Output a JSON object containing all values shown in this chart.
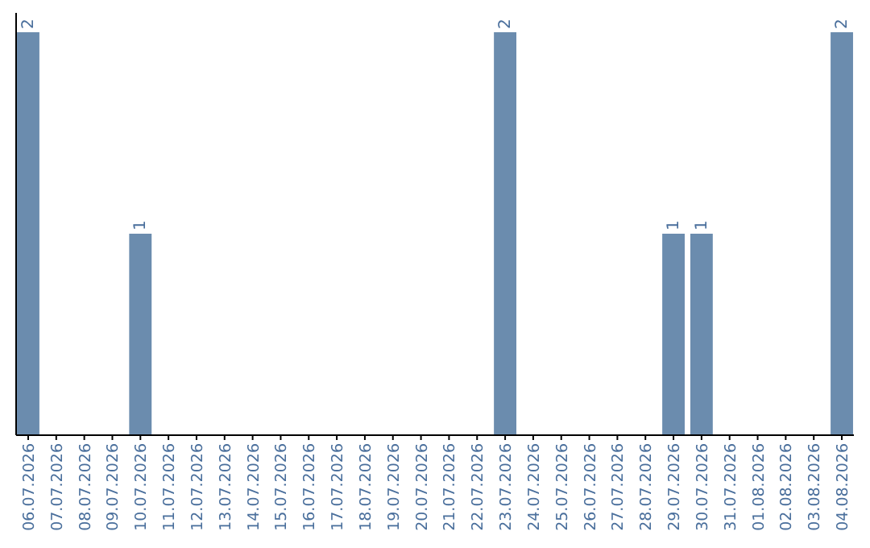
{
  "chart_data": {
    "type": "bar",
    "categories": [
      "06.07.2026",
      "07.07.2026",
      "08.07.2026",
      "09.07.2026",
      "10.07.2026",
      "11.07.2026",
      "12.07.2026",
      "13.07.2026",
      "14.07.2026",
      "15.07.2026",
      "16.07.2026",
      "17.07.2026",
      "18.07.2026",
      "19.07.2026",
      "20.07.2026",
      "21.07.2026",
      "22.07.2026",
      "23.07.2026",
      "24.07.2026",
      "25.07.2026",
      "26.07.2026",
      "27.07.2026",
      "28.07.2026",
      "29.07.2026",
      "30.07.2026",
      "31.07.2026",
      "01.08.2026",
      "02.08.2026",
      "03.08.2026",
      "04.08.2026"
    ],
    "values": [
      2,
      0,
      0,
      0,
      1,
      0,
      0,
      0,
      0,
      0,
      0,
      0,
      0,
      0,
      0,
      0,
      0,
      2,
      0,
      0,
      0,
      0,
      0,
      1,
      1,
      0,
      0,
      0,
      0,
      2
    ],
    "value_labels": [
      "2",
      null,
      null,
      null,
      "1",
      null,
      null,
      null,
      null,
      null,
      null,
      null,
      null,
      null,
      null,
      null,
      null,
      "2",
      null,
      null,
      null,
      null,
      null,
      "1",
      "1",
      null,
      null,
      null,
      null,
      "2"
    ],
    "color": "#6b8cae"
  }
}
